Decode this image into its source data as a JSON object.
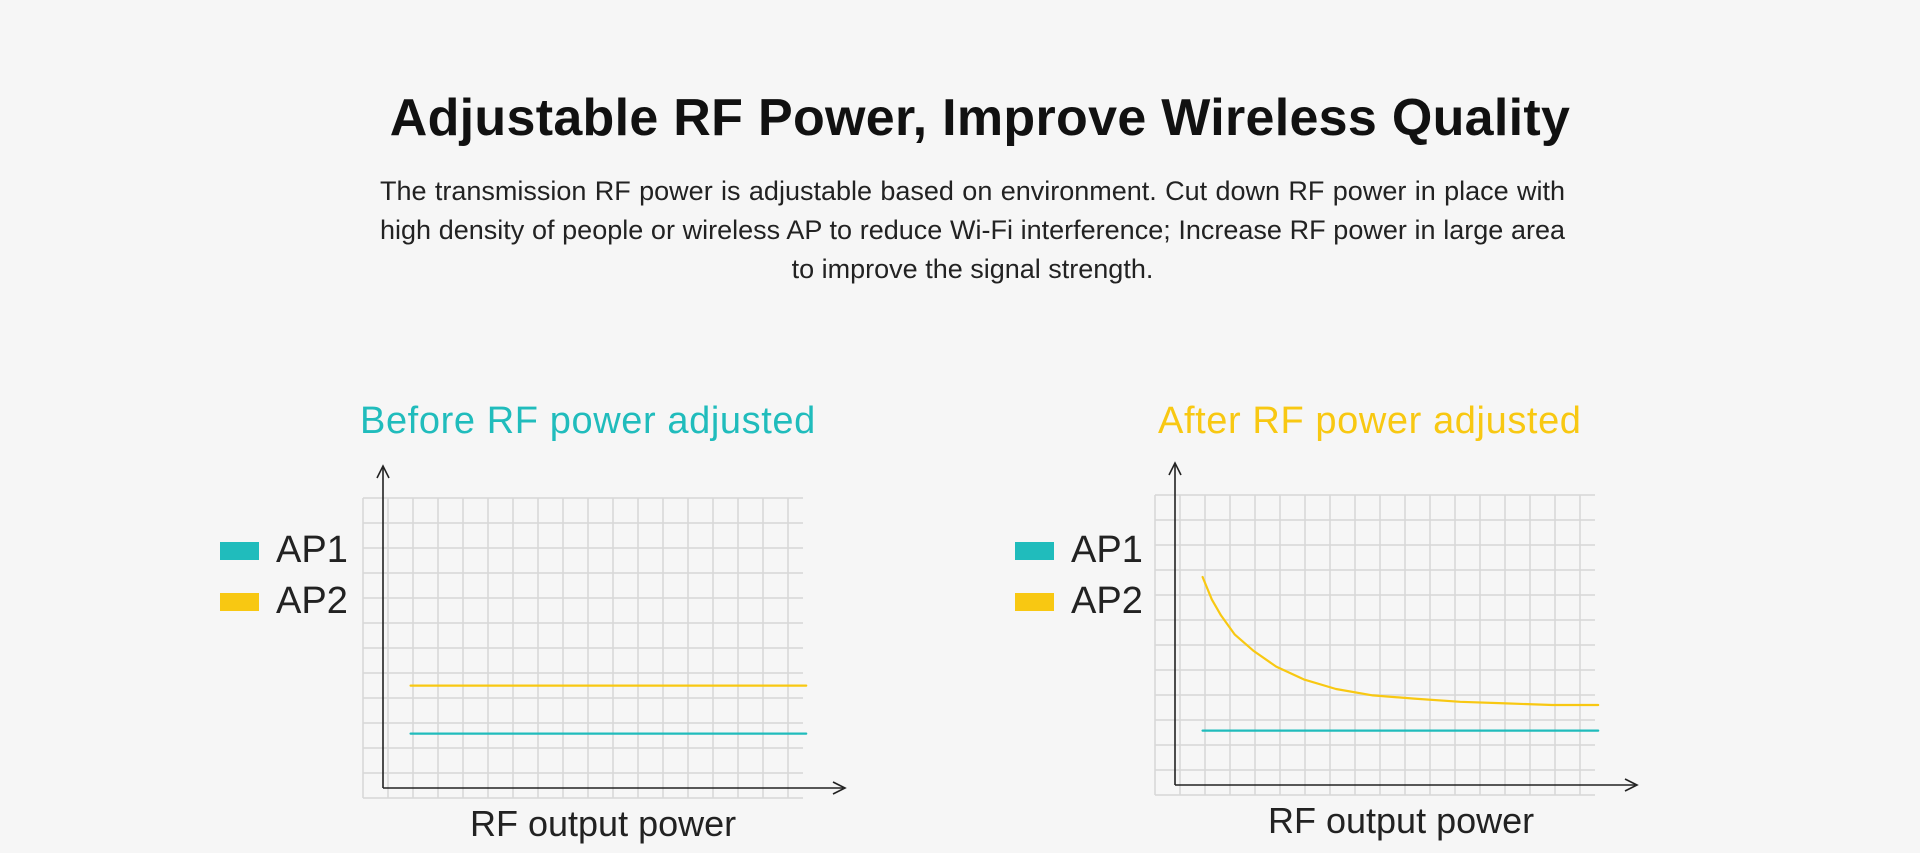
{
  "header": {
    "title": "Adjustable RF Power, Improve Wireless Quality",
    "description": "The transmission RF power is adjustable based on environment. Cut down RF power in place with high density of people or wireless AP to reduce Wi-Fi interference; Increase RF power in large area to improve the signal strength."
  },
  "colors": {
    "ap1": "#20bcbc",
    "ap2": "#f8c812",
    "title_before": "#20bcbc",
    "title_after": "#f8c812"
  },
  "chart_data": [
    {
      "type": "line",
      "title": "Before RF power adjusted",
      "xlabel": "RF output power",
      "ylabel": "",
      "xlim": [
        0,
        1
      ],
      "ylim": [
        0,
        1
      ],
      "grid": true,
      "legend_position": "top-left",
      "legend": [
        "AP1",
        "AP2"
      ],
      "series": [
        {
          "name": "AP1",
          "x": [
            0.06,
            0.92
          ],
          "y": [
            0.17,
            0.17
          ]
        },
        {
          "name": "AP2",
          "x": [
            0.06,
            0.92
          ],
          "y": [
            0.32,
            0.32
          ]
        }
      ]
    },
    {
      "type": "line",
      "title": "After RF power adjusted",
      "xlabel": "RF output power",
      "ylabel": "",
      "xlim": [
        0,
        1
      ],
      "ylim": [
        0,
        1
      ],
      "grid": true,
      "legend_position": "top-left",
      "legend": [
        "AP1",
        "AP2"
      ],
      "series": [
        {
          "name": "AP1",
          "x": [
            0.06,
            0.92
          ],
          "y": [
            0.17,
            0.17
          ]
        },
        {
          "name": "AP2",
          "x": [
            0.06,
            0.08,
            0.1,
            0.13,
            0.17,
            0.22,
            0.28,
            0.35,
            0.43,
            0.52,
            0.62,
            0.72,
            0.82,
            0.92
          ],
          "y": [
            0.65,
            0.58,
            0.53,
            0.47,
            0.42,
            0.37,
            0.33,
            0.3,
            0.28,
            0.27,
            0.26,
            0.255,
            0.25,
            0.25
          ]
        }
      ]
    }
  ]
}
